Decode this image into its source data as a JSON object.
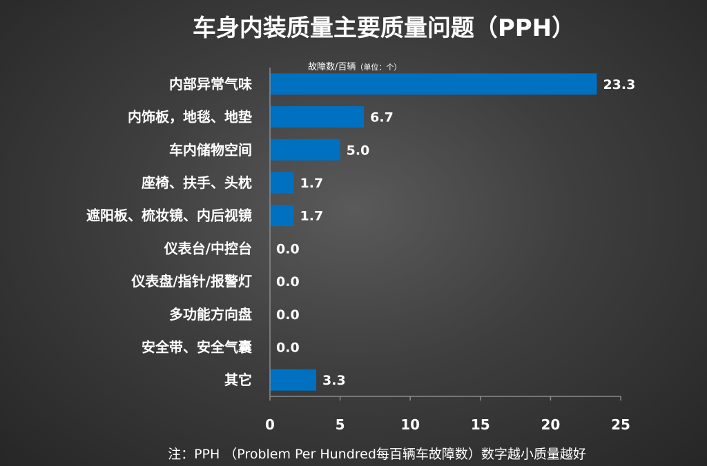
{
  "chart_data": {
    "type": "bar",
    "orientation": "horizontal",
    "title": "车身内装质量主要质量问题（PPH）",
    "unit_label": "故障数/百辆",
    "unit_note": "（单位：个）",
    "categories": [
      "内部异常气味",
      "内饰板，地毯、地垫",
      "车内储物空间",
      "座椅、扶手、头枕",
      "遮阳板、梳妆镜、内后视镜",
      "仪表台/中控台",
      "仪表盘/指针/报警灯",
      "多功能方向盘",
      "安全带、安全气囊",
      "其它"
    ],
    "values": [
      23.3,
      6.7,
      5.0,
      1.7,
      1.7,
      0.0,
      0.0,
      0.0,
      0.0,
      3.3
    ],
    "value_labels": [
      "23.3",
      "6.7",
      "5.0",
      "1.7",
      "1.7",
      "0.0",
      "0.0",
      "0.0",
      "0.0",
      "3.3"
    ],
    "xlim": [
      0,
      25
    ],
    "xticks": [
      "0",
      "5",
      "10",
      "15",
      "20",
      "25"
    ],
    "bar_color": "#0070c0",
    "footnote": "注：PPH （Problem Per Hundred每百辆车故障数）数字越小质量越好"
  }
}
